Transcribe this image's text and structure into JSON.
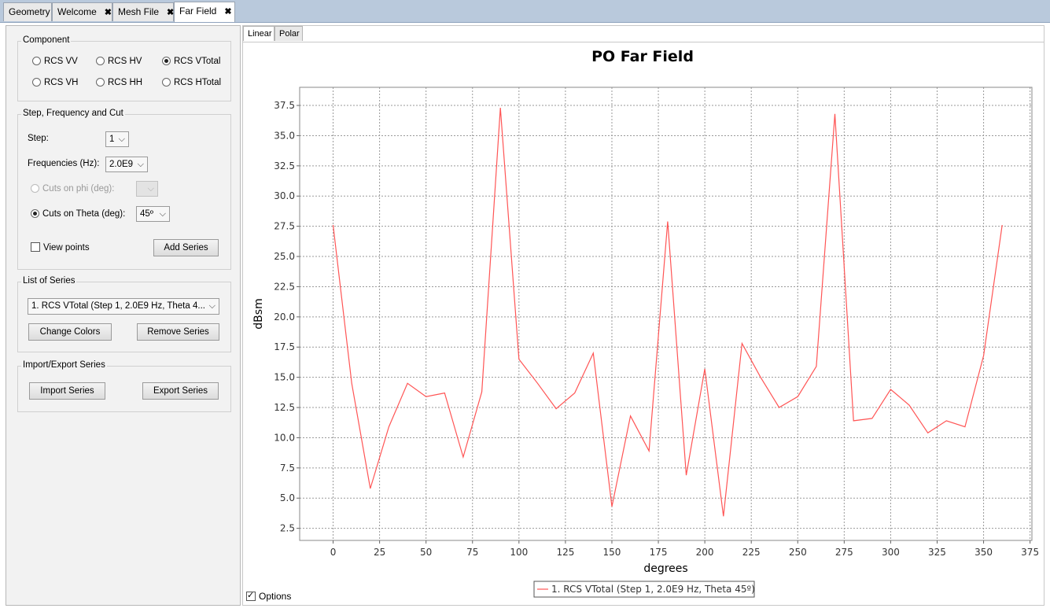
{
  "tabs": [
    {
      "label": "Geometry",
      "closable": false,
      "active": false
    },
    {
      "label": "Welcome",
      "closable": true,
      "active": false
    },
    {
      "label": "Mesh File",
      "closable": true,
      "active": false
    },
    {
      "label": "Far Field",
      "closable": true,
      "active": true
    }
  ],
  "left_panel": {
    "component": {
      "title": "Component",
      "options": [
        {
          "label": "RCS VV",
          "selected": false
        },
        {
          "label": "RCS HV",
          "selected": false
        },
        {
          "label": "RCS VTotal",
          "selected": true
        },
        {
          "label": "RCS VH",
          "selected": false
        },
        {
          "label": "RCS HH",
          "selected": false
        },
        {
          "label": "RCS HTotal",
          "selected": false
        }
      ]
    },
    "step_freq_cut": {
      "title": "Step, Frequency and Cut",
      "step_label": "Step:",
      "step_value": "1",
      "freq_label": "Frequencies (Hz):",
      "freq_value": "2.0E9",
      "phi_label": "Cuts on phi (deg):",
      "phi_value": "",
      "theta_label": "Cuts on Theta (deg):",
      "theta_value": "45º",
      "view_points_label": "View points",
      "add_series_label": "Add Series"
    },
    "series_list": {
      "title": "List of Series",
      "selected": "1. RCS VTotal (Step 1, 2.0E9 Hz, Theta 4...",
      "change_colors_label": "Change Colors",
      "remove_series_label": "Remove Series"
    },
    "import_export": {
      "title": "Import/Export Series",
      "import_label": "Import Series",
      "export_label": "Export Series"
    }
  },
  "plot_tabs": [
    "Linear",
    "Polar"
  ],
  "options_label": "Options",
  "chart_data": {
    "type": "line",
    "title": "PO Far Field",
    "xlabel": "degrees",
    "ylabel": "dBsm",
    "xlim": [
      -18,
      376
    ],
    "ylim": [
      1.5,
      39.0
    ],
    "xticks": [
      0,
      25,
      50,
      75,
      100,
      125,
      150,
      175,
      200,
      225,
      250,
      275,
      300,
      325,
      350,
      375
    ],
    "yticks": [
      2.5,
      5.0,
      7.5,
      10.0,
      12.5,
      15.0,
      17.5,
      20.0,
      22.5,
      25.0,
      27.5,
      30.0,
      32.5,
      35.0,
      37.5
    ],
    "grid": true,
    "legend_position": "bottom",
    "series": [
      {
        "name": "1. RCS VTotal (Step 1, 2.0E9 Hz, Theta 45º)",
        "color": "#ff5555",
        "x": [
          0,
          10,
          20,
          30,
          40,
          50,
          60,
          70,
          80,
          90,
          100,
          110,
          120,
          130,
          140,
          150,
          160,
          170,
          180,
          190,
          200,
          210,
          220,
          230,
          240,
          250,
          260,
          270,
          280,
          290,
          300,
          310,
          320,
          330,
          340,
          350,
          360
        ],
        "values": [
          27.6,
          14.5,
          5.8,
          10.9,
          14.5,
          13.4,
          13.7,
          8.4,
          13.8,
          37.3,
          16.5,
          14.5,
          12.4,
          13.7,
          17.0,
          4.3,
          11.8,
          8.9,
          27.9,
          6.9,
          15.7,
          3.5,
          17.8,
          15.0,
          12.5,
          13.4,
          15.9,
          36.8,
          11.4,
          11.6,
          14.0,
          12.7,
          10.4,
          11.4,
          10.9,
          16.8,
          27.6
        ]
      }
    ]
  }
}
